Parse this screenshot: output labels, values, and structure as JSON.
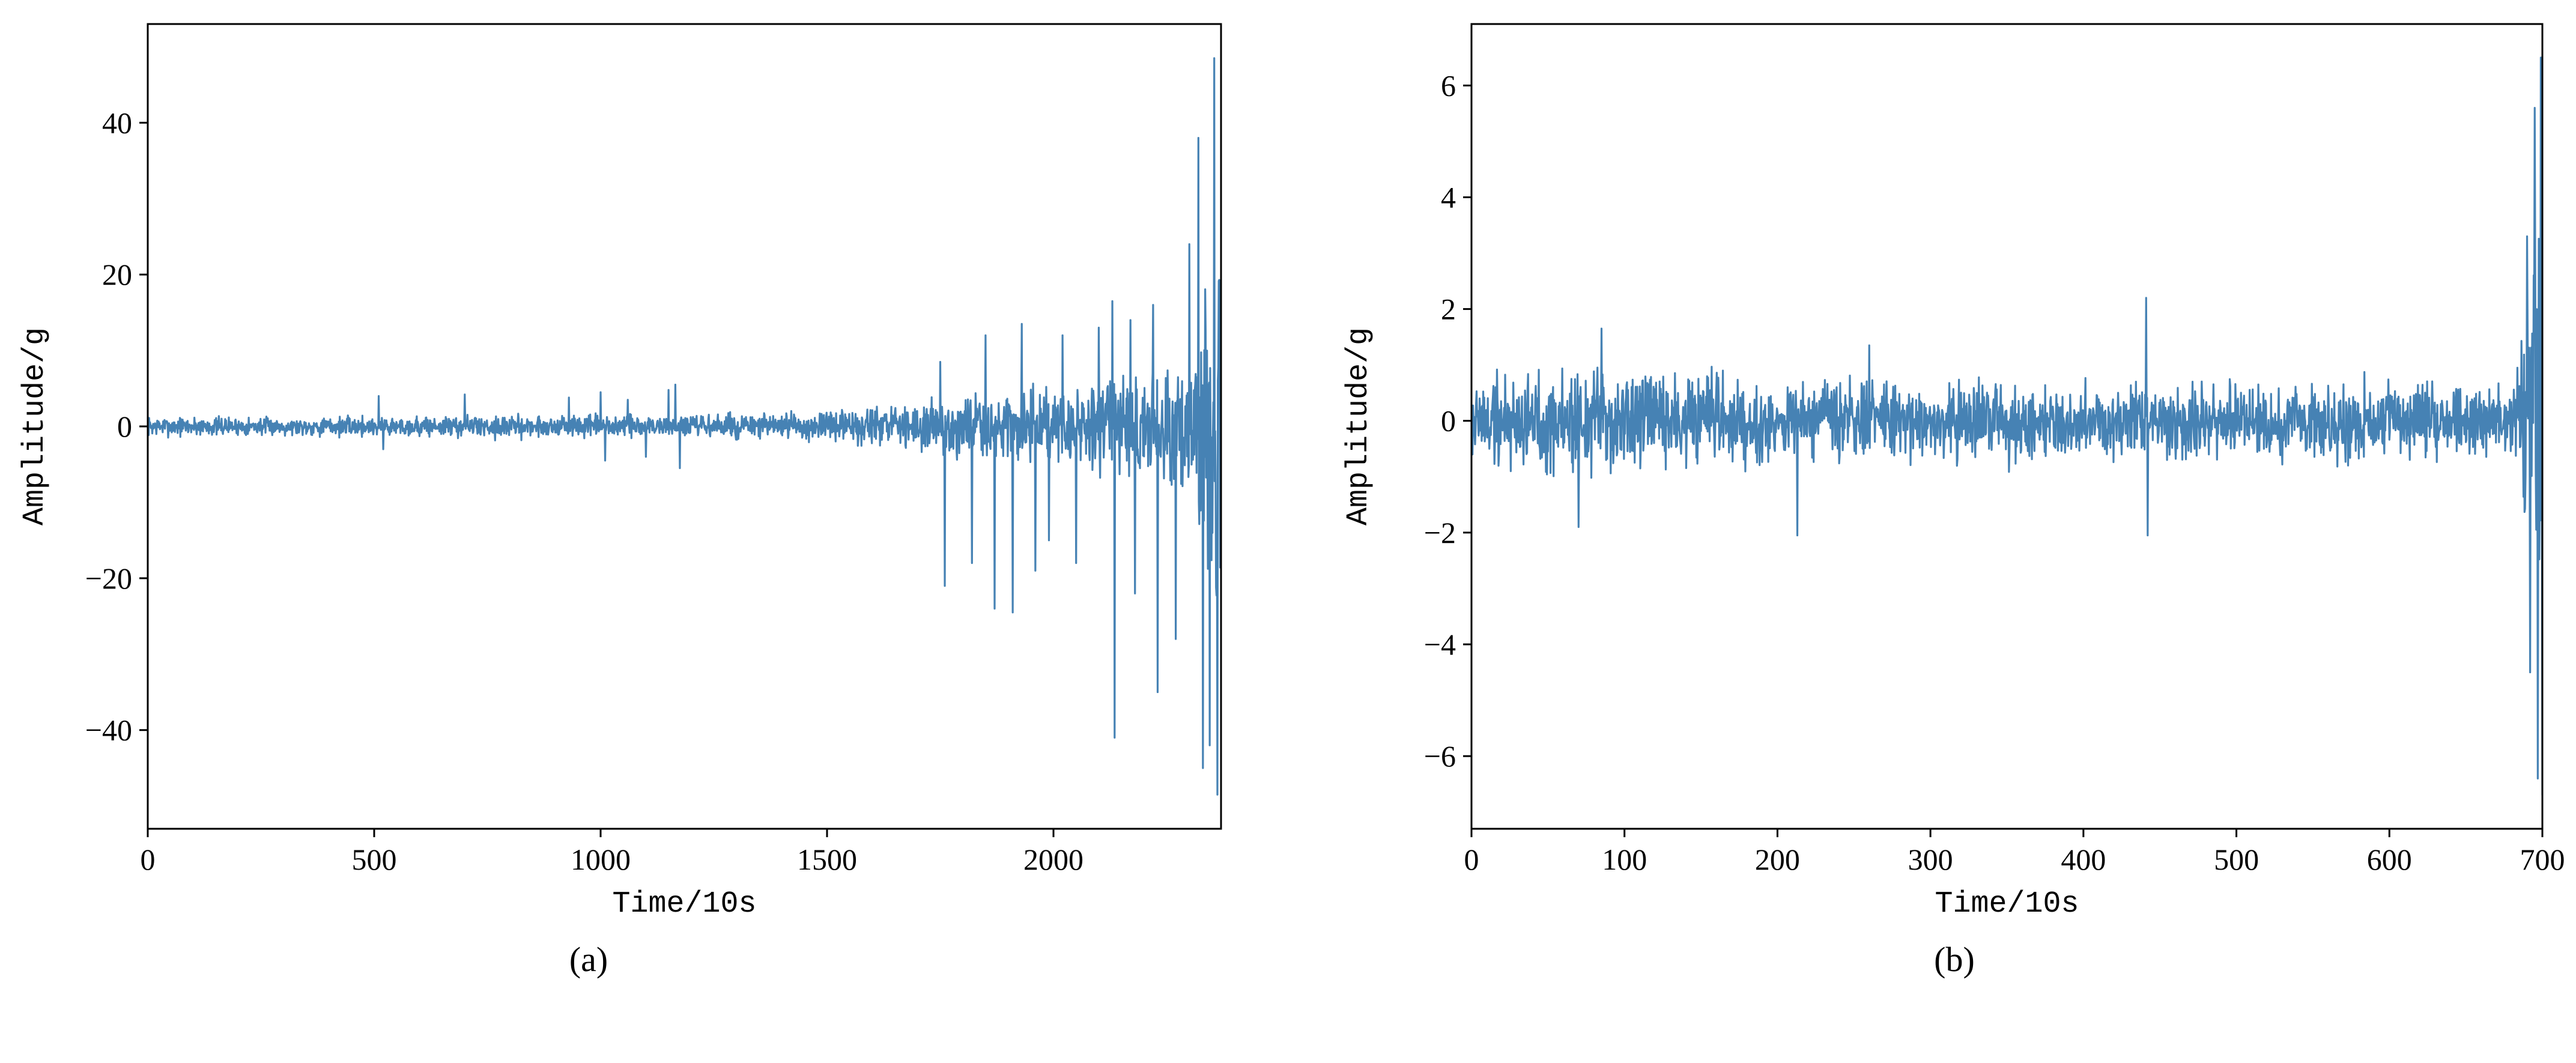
{
  "figure": {
    "panels": [
      {
        "caption": "(a)"
      },
      {
        "caption": "(b)"
      }
    ]
  },
  "colors": {
    "line": "#4682b4",
    "axes": "#000000",
    "background": "#ffffff"
  },
  "chart_data": [
    {
      "type": "line",
      "title": "",
      "xlabel": "Time/10s",
      "ylabel": "Amplitude/g",
      "xlim": [
        0,
        2370
      ],
      "ylim": [
        -53,
        53
      ],
      "xticks": [
        0,
        500,
        1000,
        1500,
        2000
      ],
      "yticks": [
        -40,
        -20,
        0,
        20,
        40
      ],
      "grid": false,
      "legend": "none",
      "n_samples": 2370,
      "envelope": {
        "x": [
          0,
          100,
          300,
          500,
          700,
          1000,
          1200,
          1400,
          1500,
          1600,
          1700,
          1800,
          1900,
          2000,
          2100,
          2200,
          2250,
          2300,
          2330,
          2350,
          2370
        ],
        "amplitude": [
          1.6,
          1.7,
          1.5,
          1.8,
          1.9,
          2.0,
          2.0,
          2.3,
          2.6,
          3.2,
          4.0,
          5.0,
          6.0,
          6.5,
          8.0,
          9.0,
          10.0,
          12.0,
          18.0,
          35.0,
          48.0
        ]
      },
      "spikes": [
        {
          "x": 510,
          "y": 4.0
        },
        {
          "x": 520,
          "y": -3.0
        },
        {
          "x": 700,
          "y": 4.2
        },
        {
          "x": 930,
          "y": 3.8
        },
        {
          "x": 1000,
          "y": 4.5
        },
        {
          "x": 1010,
          "y": -4.5
        },
        {
          "x": 1060,
          "y": 3.5
        },
        {
          "x": 1100,
          "y": -4.0
        },
        {
          "x": 1150,
          "y": 4.8
        },
        {
          "x": 1165,
          "y": 5.5
        },
        {
          "x": 1175,
          "y": -5.5
        },
        {
          "x": 1750,
          "y": 8.5
        },
        {
          "x": 1760,
          "y": -21.0
        },
        {
          "x": 1820,
          "y": -18.0
        },
        {
          "x": 1850,
          "y": 12.0
        },
        {
          "x": 1870,
          "y": -24.0
        },
        {
          "x": 1910,
          "y": -24.5
        },
        {
          "x": 1930,
          "y": 13.5
        },
        {
          "x": 1960,
          "y": -19.0
        },
        {
          "x": 1990,
          "y": -15.0
        },
        {
          "x": 2020,
          "y": 12.0
        },
        {
          "x": 2050,
          "y": -18.0
        },
        {
          "x": 2100,
          "y": 13.0
        },
        {
          "x": 2130,
          "y": 16.5
        },
        {
          "x": 2135,
          "y": -41.0
        },
        {
          "x": 2170,
          "y": 14.0
        },
        {
          "x": 2180,
          "y": -22.0
        },
        {
          "x": 2220,
          "y": 16.0
        },
        {
          "x": 2230,
          "y": -35.0
        },
        {
          "x": 2270,
          "y": -28.0
        },
        {
          "x": 2300,
          "y": 24.0
        },
        {
          "x": 2320,
          "y": 38.0
        },
        {
          "x": 2330,
          "y": -45.0
        },
        {
          "x": 2345,
          "y": -42.0
        },
        {
          "x": 2355,
          "y": 48.5
        },
        {
          "x": 2362,
          "y": -48.5
        }
      ]
    },
    {
      "type": "line",
      "title": "",
      "xlabel": "Time/10s",
      "ylabel": "Amplitude/g",
      "xlim": [
        0,
        700
      ],
      "ylim": [
        -7.3,
        7.1
      ],
      "xticks": [
        0,
        100,
        200,
        300,
        400,
        500,
        600,
        700
      ],
      "yticks": [
        -6,
        -4,
        -2,
        0,
        2,
        4,
        6
      ],
      "grid": false,
      "legend": "none",
      "n_samples": 2100,
      "envelope": {
        "x": [
          0,
          50,
          100,
          150,
          200,
          300,
          400,
          500,
          600,
          680,
          685,
          690,
          695,
          700
        ],
        "amplitude": [
          1.15,
          1.25,
          1.3,
          1.1,
          0.95,
          0.9,
          0.9,
          0.9,
          0.9,
          0.9,
          2.0,
          3.5,
          5.5,
          6.5
        ]
      },
      "spikes": [
        {
          "x": 70,
          "y": -1.9
        },
        {
          "x": 85,
          "y": 1.65
        },
        {
          "x": 213,
          "y": -2.05
        },
        {
          "x": 260,
          "y": 1.35
        },
        {
          "x": 441,
          "y": 2.2
        },
        {
          "x": 442,
          "y": -2.05
        },
        {
          "x": 690,
          "y": 3.3
        },
        {
          "x": 692,
          "y": -4.5
        },
        {
          "x": 695,
          "y": 5.6
        },
        {
          "x": 697,
          "y": -6.4
        },
        {
          "x": 699,
          "y": 6.5
        },
        {
          "x": 700,
          "y": -6.7
        }
      ]
    }
  ]
}
